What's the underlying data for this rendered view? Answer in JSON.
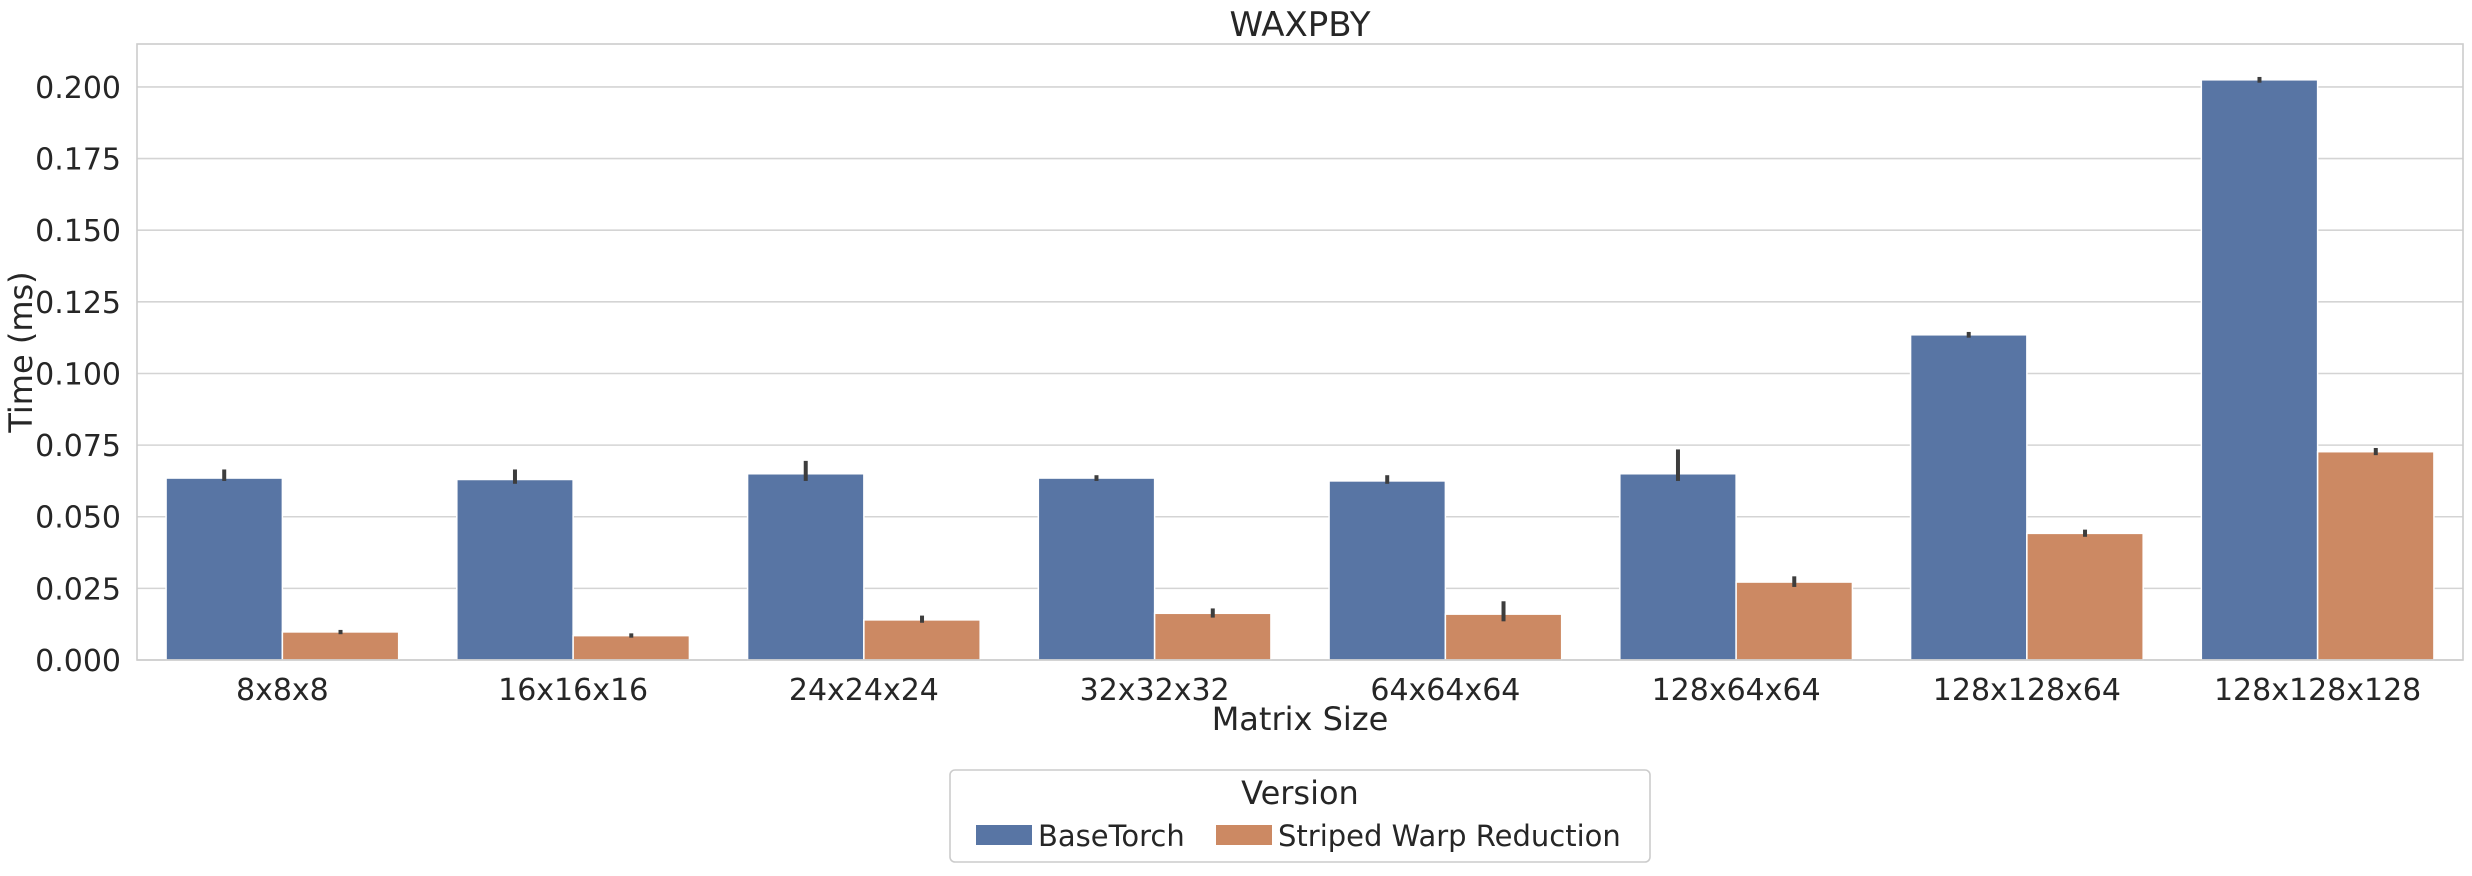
{
  "chart_data": {
    "type": "bar",
    "title": "WAXPBY",
    "xlabel": "Matrix Size",
    "ylabel": "Time (ms)",
    "categories": [
      "8x8x8",
      "16x16x16",
      "24x24x24",
      "32x32x32",
      "64x64x64",
      "128x64x64",
      "128x128x64",
      "128x128x128"
    ],
    "ylim": [
      0,
      0.215
    ],
    "yticks": [
      0.0,
      0.025,
      0.05,
      0.075,
      0.1,
      0.125,
      0.15,
      0.175,
      0.2
    ],
    "ytick_labels": [
      "0.000",
      "0.025",
      "0.050",
      "0.075",
      "0.100",
      "0.125",
      "0.150",
      "0.175",
      "0.200"
    ],
    "grid": true,
    "series": [
      {
        "name": "BaseTorch",
        "color": "#5875a4",
        "values": [
          0.0635,
          0.063,
          0.065,
          0.0635,
          0.0625,
          0.065,
          0.1135,
          0.2025
        ],
        "error_low": [
          0.0625,
          0.0615,
          0.0625,
          0.0625,
          0.0615,
          0.0625,
          0.1125,
          0.2015
        ],
        "error_high": [
          0.0665,
          0.0665,
          0.0695,
          0.0645,
          0.0645,
          0.0735,
          0.1145,
          0.2035
        ]
      },
      {
        "name": "Striped Warp Reduction",
        "color": "#cc8963",
        "values": [
          0.0098,
          0.0085,
          0.014,
          0.0163,
          0.016,
          0.0272,
          0.0442,
          0.0727
        ],
        "error_low": [
          0.009,
          0.0078,
          0.013,
          0.0148,
          0.0135,
          0.0255,
          0.043,
          0.0715
        ],
        "error_high": [
          0.0105,
          0.0093,
          0.0155,
          0.018,
          0.0205,
          0.0292,
          0.0455,
          0.074
        ]
      }
    ],
    "legend": {
      "title": "Version",
      "placement": "bottom-center"
    }
  }
}
